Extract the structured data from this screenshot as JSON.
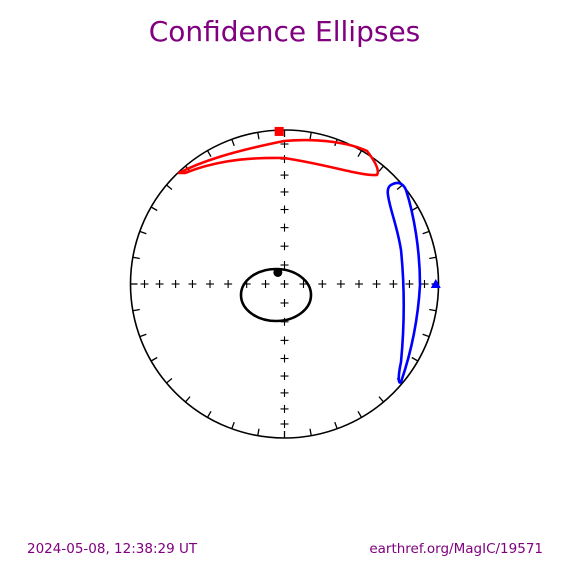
{
  "chart_data": {
    "type": "equal-area-stereonet",
    "title": "Confidence Ellipses",
    "plot_type": "equal-area projection with confidence ellipses",
    "tick_interval_deg": 10,
    "mean_directions": [
      {
        "component": "black",
        "color": "#000000",
        "marker": "circle",
        "dec": 330,
        "inc": 83,
        "ellipse": "closed, centered near pole"
      },
      {
        "component": "red",
        "color": "#ff0000",
        "marker": "square",
        "dec": 358,
        "inc": 1,
        "ellipse": "elongated arc along top edge"
      },
      {
        "component": "blue",
        "color": "#0000ff",
        "marker": "triangle",
        "dec": 90,
        "inc": 2,
        "ellipse": "elongated along right edge"
      }
    ]
  },
  "title": "Confidence Ellipses",
  "colors": {
    "title": "#800080",
    "footer": "#800080"
  },
  "footer": {
    "timestamp": "2024-05-08, 12:38:29 UT",
    "source": "earthref.org/MagIC/19571"
  }
}
